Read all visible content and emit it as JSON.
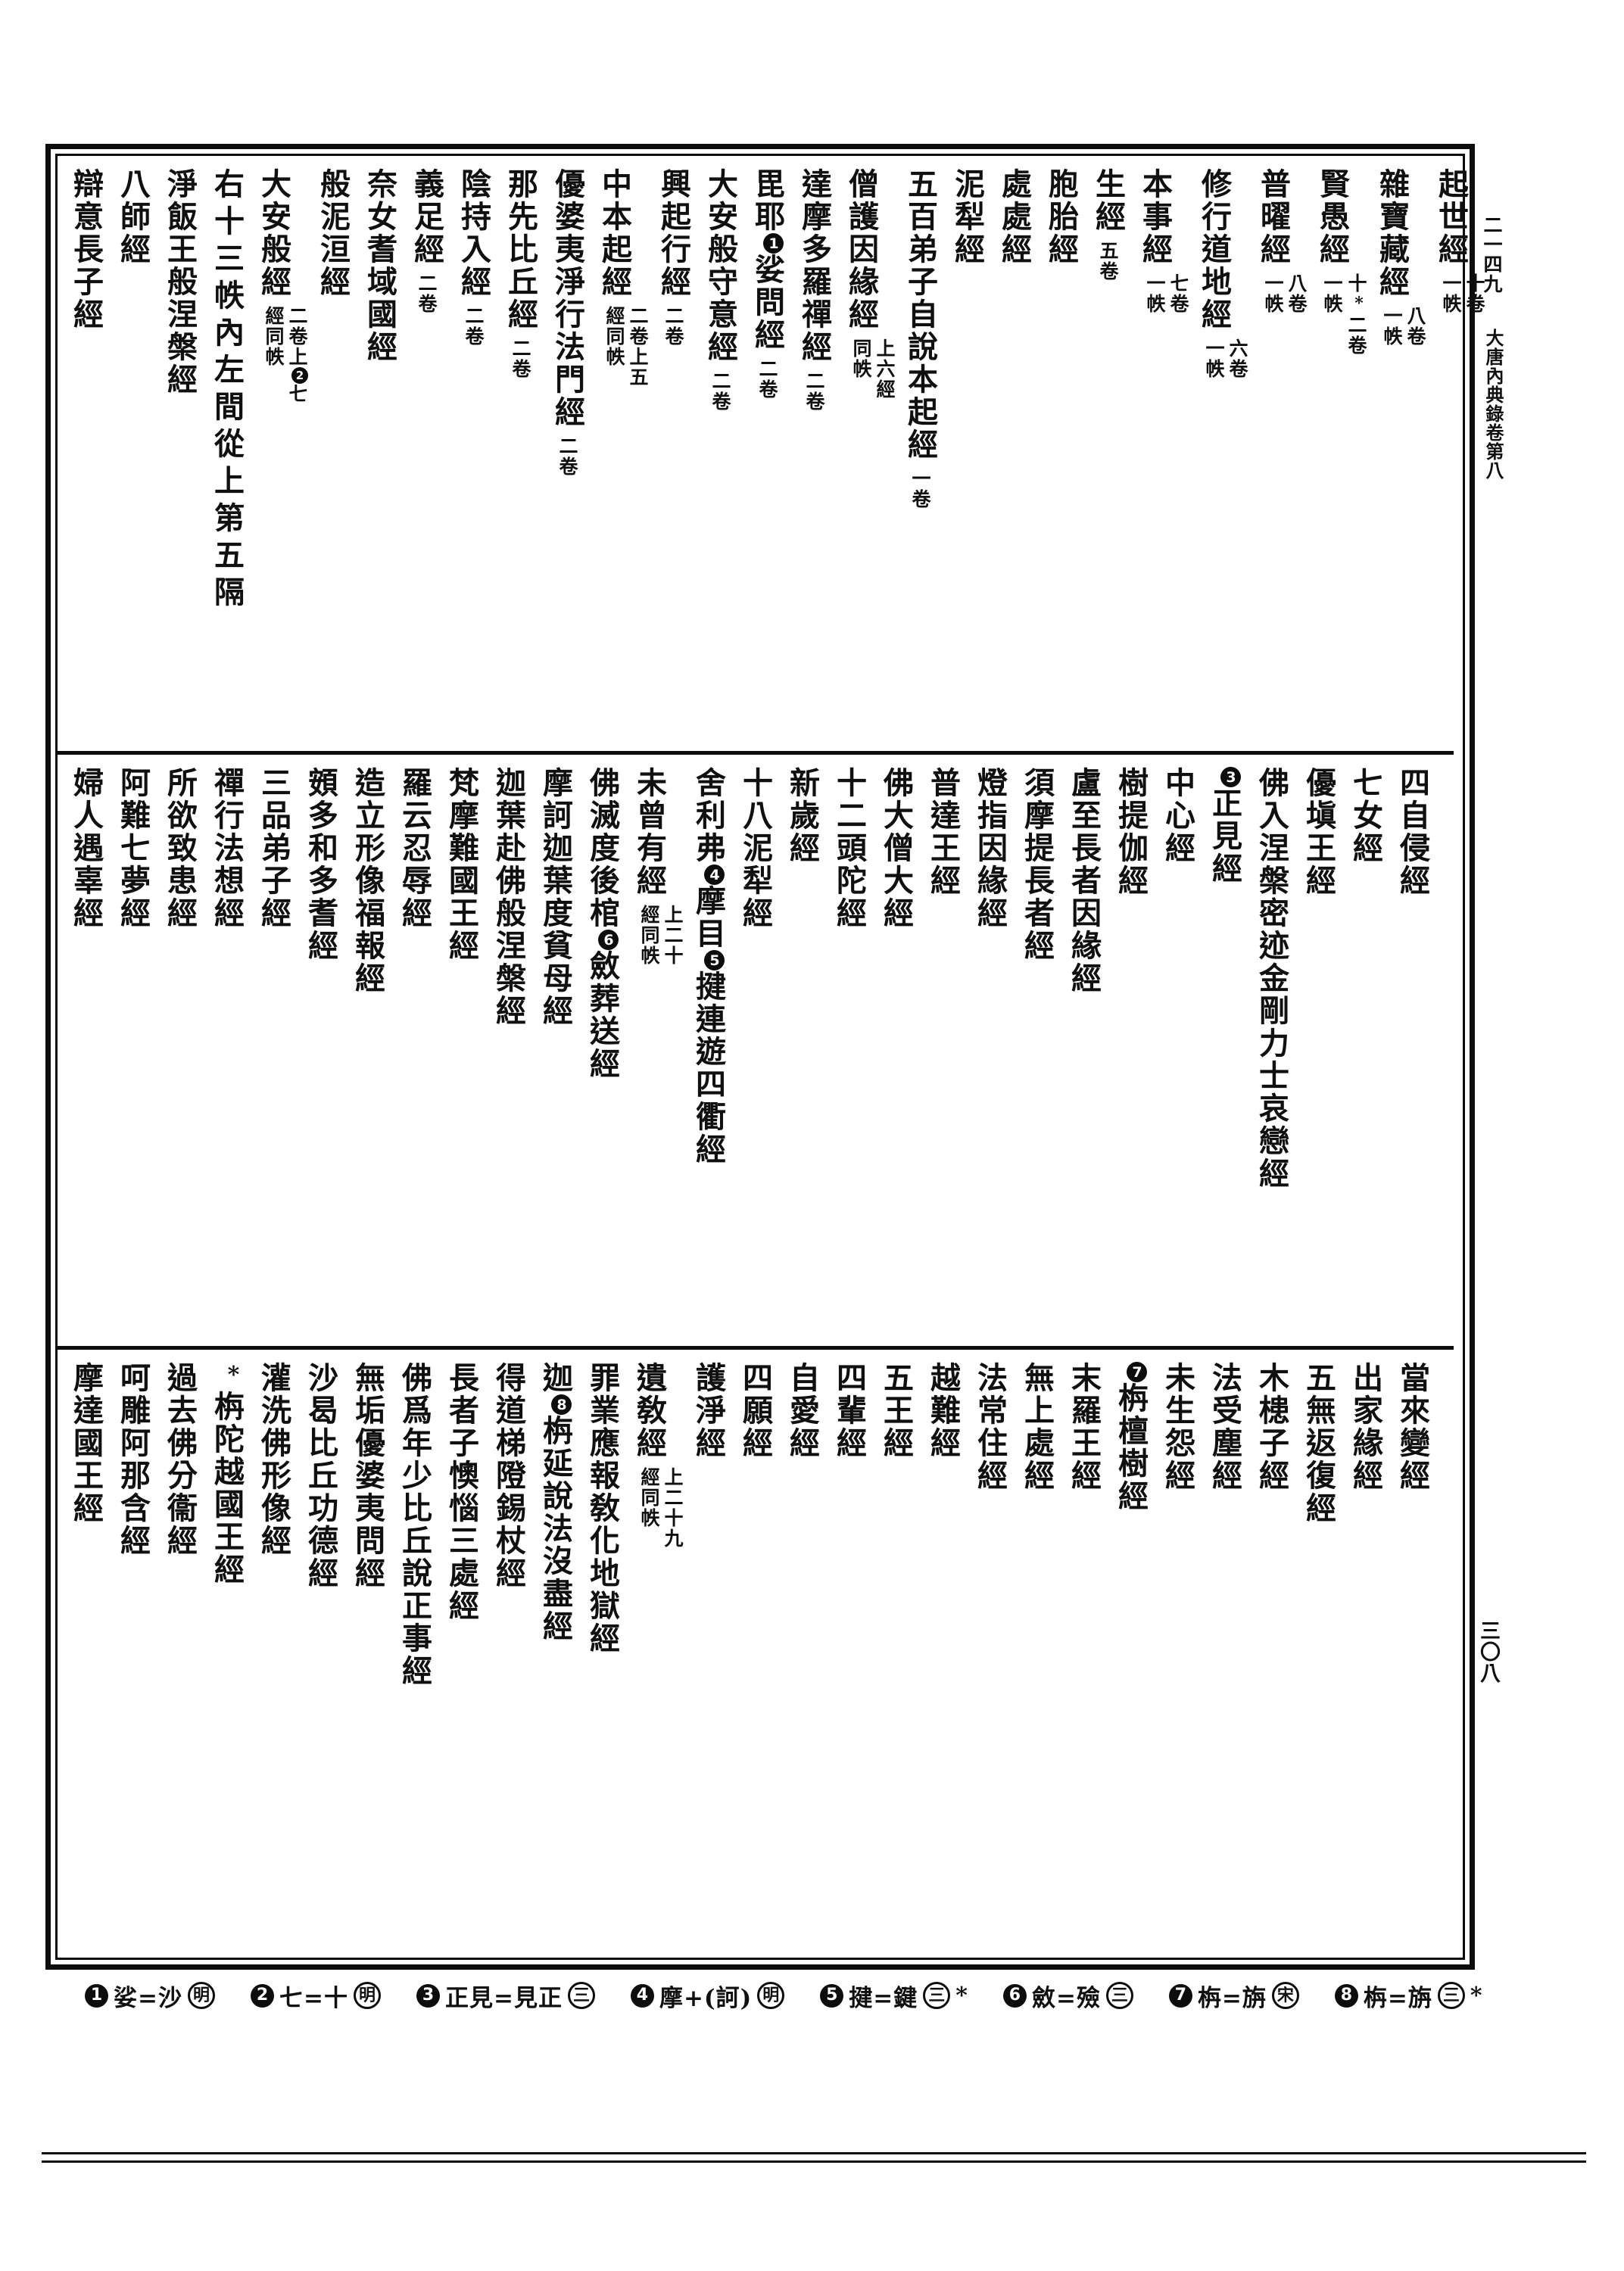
{
  "margin": {
    "text_number": "二一四九",
    "volume_title": "大唐內典錄卷第八",
    "page_number": "三〇八"
  },
  "bands": [
    {
      "entries": [
        {
          "title": "起世經",
          "ann": [
            "十卷",
            "一帙"
          ]
        },
        {
          "title": "雜寶藏經",
          "ann": [
            "八卷",
            "一帙"
          ]
        },
        {
          "title": "賢愚經",
          "ann": [
            "十*二卷",
            "一帙"
          ]
        },
        {
          "title": "普曜經",
          "ann": [
            "八卷",
            "一帙"
          ]
        },
        {
          "title": "修行道地經",
          "ann": [
            "六卷",
            "一帙"
          ]
        },
        {
          "title": "本事經",
          "ann": [
            "七卷",
            "一帙"
          ]
        },
        {
          "title": "生經",
          "ann": [
            "五卷"
          ]
        },
        {
          "title": "胞胎經"
        },
        {
          "title": "處處經"
        },
        {
          "title": "泥犁經"
        },
        {
          "title": "五百弟子自說本起經",
          "ann": [
            "一卷"
          ]
        },
        {
          "title": "僧護因緣經",
          "ann": [
            "上六經",
            "同帙"
          ]
        },
        {
          "title": "達摩多羅禪經",
          "ann": [
            "二卷"
          ]
        },
        {
          "title": "毘耶❶娑問經",
          "ann": [
            "二卷"
          ]
        },
        {
          "title": "大安般守意經",
          "ann": [
            "二卷"
          ]
        },
        {
          "title": "興起行經",
          "ann": [
            "二卷"
          ]
        },
        {
          "title": "中本起經",
          "ann": [
            "二卷上五",
            "經同帙"
          ]
        },
        {
          "title": "優婆夷淨行法門經",
          "ann": [
            "二卷"
          ]
        },
        {
          "title": "那先比丘經",
          "ann": [
            "二卷"
          ]
        },
        {
          "title": "陰持入經",
          "ann": [
            "二卷"
          ]
        },
        {
          "title": "義足經",
          "ann": [
            "二卷"
          ]
        },
        {
          "title": "奈女耆域國經"
        },
        {
          "title": "般泥洹經"
        },
        {
          "title": "大安般經",
          "ann": [
            "二卷上❷七",
            "經同帙"
          ]
        },
        {
          "title": "右十三帙內左間從上第五隔",
          "spread": true
        },
        {
          "title": "淨飯王般涅槃經"
        },
        {
          "title": "八師經"
        },
        {
          "title": "辯意長子經"
        }
      ]
    },
    {
      "entries": [
        {
          "title": "四自侵經"
        },
        {
          "title": "七女經"
        },
        {
          "title": "優塡王經"
        },
        {
          "title": "佛入涅槃密迹金剛力士哀戀經"
        },
        {
          "title": "❸正見經"
        },
        {
          "title": "中心經"
        },
        {
          "title": "樹提伽經"
        },
        {
          "title": "盧至長者因緣經"
        },
        {
          "title": "須摩提長者經"
        },
        {
          "title": "燈指因緣經"
        },
        {
          "title": "普達王經"
        },
        {
          "title": "佛大僧大經"
        },
        {
          "title": "十二頭陀經"
        },
        {
          "title": "新歲經"
        },
        {
          "title": "十八泥犁經"
        },
        {
          "title": "舍利弗❹摩目❺揵連遊四衢經"
        },
        {
          "title": "未曾有經",
          "ann": [
            "上二十",
            "經同帙"
          ]
        },
        {
          "title": "佛滅度後棺❻斂葬送經"
        },
        {
          "title": "摩訶迦葉度貧母經"
        },
        {
          "title": "迦葉赴佛般涅槃經"
        },
        {
          "title": "梵摩難國王經"
        },
        {
          "title": "羅云忍辱經"
        },
        {
          "title": "造立形像福報經"
        },
        {
          "title": "頞多和多耆經"
        },
        {
          "title": "三品弟子經"
        },
        {
          "title": "禪行法想經"
        },
        {
          "title": "所欲致患經"
        },
        {
          "title": "阿難七夢經"
        },
        {
          "title": "婦人遇辜經"
        }
      ]
    },
    {
      "entries": [
        {
          "title": "當來變經"
        },
        {
          "title": "出家緣經"
        },
        {
          "title": "五無返復經"
        },
        {
          "title": "木槵子經"
        },
        {
          "title": "法受塵經"
        },
        {
          "title": "未生怨經"
        },
        {
          "title": "❼栴檀樹經"
        },
        {
          "title": "末羅王經"
        },
        {
          "title": "無上處經"
        },
        {
          "title": "法常住經"
        },
        {
          "title": "越難經"
        },
        {
          "title": "五王經"
        },
        {
          "title": "四輩經"
        },
        {
          "title": "自愛經"
        },
        {
          "title": "四願經"
        },
        {
          "title": "護淨經"
        },
        {
          "title": "遺敎經",
          "ann": [
            "上二十九",
            "經同帙"
          ]
        },
        {
          "title": "罪業應報敎化地獄經"
        },
        {
          "title": "迦❽栴延說法沒盡經"
        },
        {
          "title": "得道梯隥錫杖經"
        },
        {
          "title": "長者子懊惱三處經"
        },
        {
          "title": "佛爲年少比丘說正事經"
        },
        {
          "title": "無垢優婆夷問經"
        },
        {
          "title": "沙曷比丘功德經"
        },
        {
          "title": "灌洗佛形像經"
        },
        {
          "title": "*栴陀越國王經"
        },
        {
          "title": "過去佛分衞經"
        },
        {
          "title": "呵雕阿那含經"
        },
        {
          "title": "摩達國王經"
        }
      ]
    }
  ],
  "footnotes": [
    {
      "n": "1",
      "body": "娑=沙",
      "ed": "明",
      "star": false
    },
    {
      "n": "2",
      "body": "七=十",
      "ed": "明",
      "star": false
    },
    {
      "n": "3",
      "body": "正見=見正",
      "ed": "三",
      "star": false
    },
    {
      "n": "4",
      "body": "摩+(訶)",
      "ed": "明",
      "star": false
    },
    {
      "n": "5",
      "body": "揵=鍵",
      "ed": "三",
      "star": true
    },
    {
      "n": "6",
      "body": "斂=殮",
      "ed": "三",
      "star": false
    },
    {
      "n": "7",
      "body": "栴=旃",
      "ed": "宋",
      "star": false
    },
    {
      "n": "8",
      "body": "栴=旃",
      "ed": "三",
      "star": true
    }
  ]
}
